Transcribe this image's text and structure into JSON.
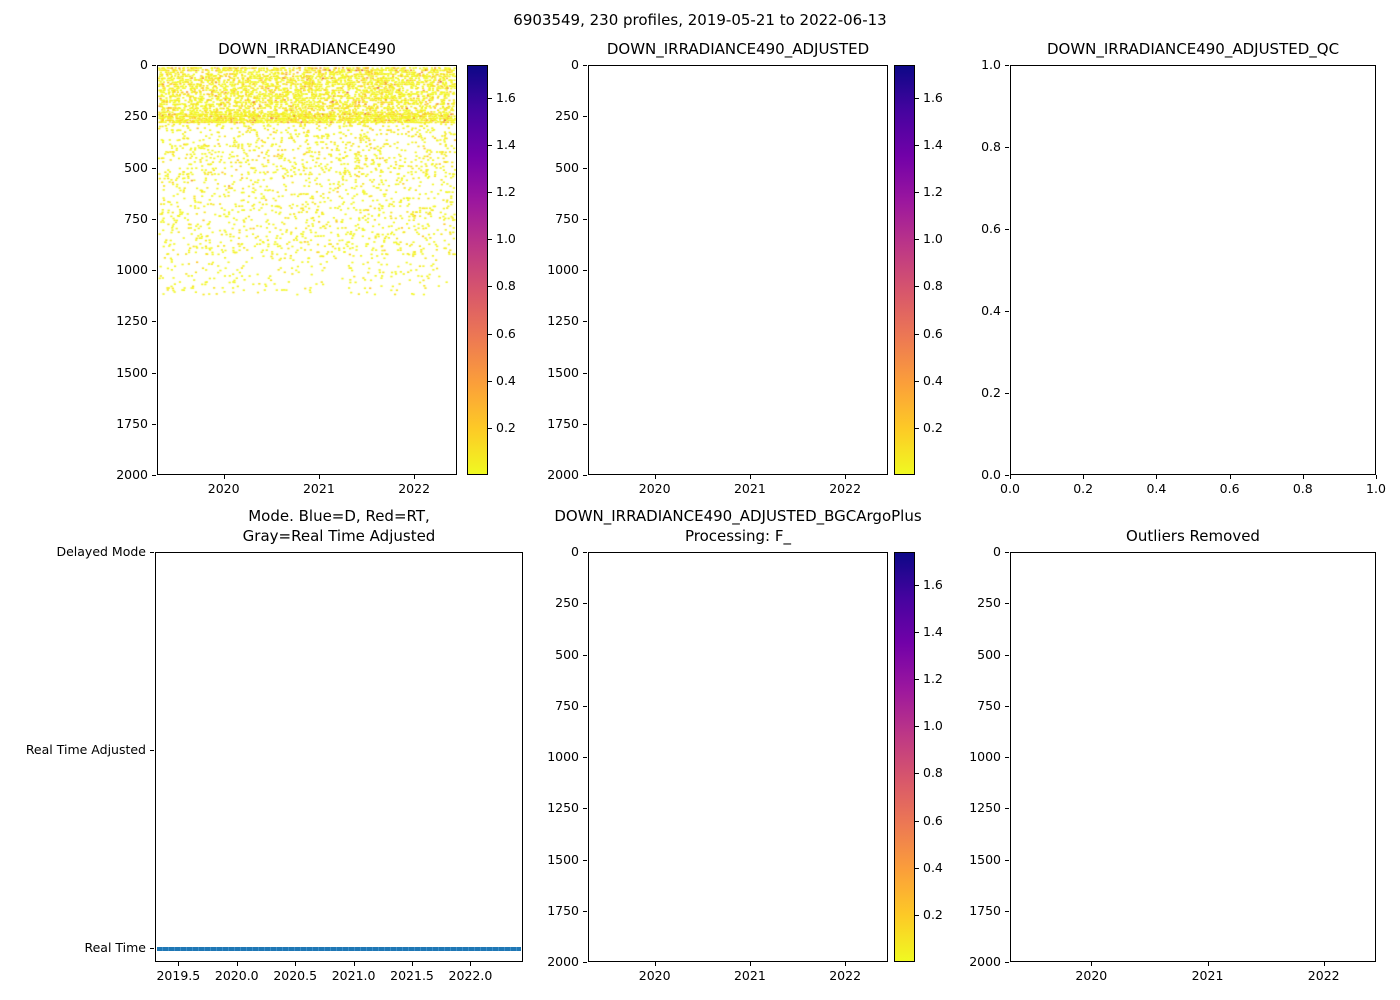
{
  "figure": {
    "suptitle": "6903549, 230 profiles, 2019-05-21 to 2022-06-13"
  },
  "palette": {
    "plasma_r_stops_top_to_bottom": [
      "#0d0887",
      "#46039f",
      "#7201a8",
      "#9c179e",
      "#bd3786",
      "#d8576b",
      "#ed7953",
      "#fb9f3a",
      "#fdca26",
      "#f0f921"
    ],
    "mode_line_blue": "#1f77b4",
    "scatter_yellow": "#f2f622",
    "scatter_yellow2": "#f6e51e",
    "scatter_gold": "#fdc827",
    "scatter_orange": "#f59e35",
    "scatter_redorange": "#e2633f"
  },
  "colorbar": {
    "vmin": 0.0,
    "vmax": 1.74,
    "tick_values": [
      0.2,
      0.4,
      0.6,
      0.8,
      1.0,
      1.2,
      1.4,
      1.6
    ],
    "tick_labels": [
      "0.2",
      "0.4",
      "0.6",
      "0.8",
      "1.0",
      "1.2",
      "1.4",
      "1.6"
    ]
  },
  "chart_data": [
    {
      "id": "ax1",
      "type": "scatter",
      "title": "DOWN_IRRADIANCE490",
      "xlim": [
        2019.3,
        2022.45
      ],
      "ylim": [
        0,
        2000
      ],
      "y_axis_inverted_depth": true,
      "xticks": {
        "values": [
          2020,
          2021,
          2022
        ],
        "labels": [
          "2020",
          "2021",
          "2022"
        ]
      },
      "yticks": {
        "values": [
          0,
          250,
          500,
          750,
          1000,
          1250,
          1500,
          1750,
          2000
        ],
        "labels": [
          "0",
          "250",
          "500",
          "750",
          "1000",
          "1250",
          "1500",
          "1750",
          "2000"
        ]
      },
      "has_colorbar": true,
      "scatter": {
        "n_profiles": 230,
        "x_data_range": [
          2019.42,
          2022.45
        ],
        "depth_data_range": [
          0,
          1115
        ],
        "value_range_colorbar": [
          0.0,
          1.74
        ],
        "dominant_value_level": "low (~0.05-0.2, yellow on plasma_r)",
        "bands": [
          {
            "depth": [
              0,
              15
            ],
            "density": 0.55,
            "p_gold": 0.1,
            "p_orange": 0.1,
            "p_redorange": 0.04
          },
          {
            "depth": [
              15,
              230
            ],
            "density": 0.48,
            "p_gold": 0.1,
            "p_orange": 0.02,
            "p_redorange": 0.003
          },
          {
            "depth": [
              230,
              272
            ],
            "density": 0.8,
            "p_gold": 0.1,
            "p_orange": 0.05,
            "p_redorange": 0.01
          },
          {
            "depth": [
              272,
              540
            ],
            "density": 0.13,
            "p_gold": 0.05,
            "p_orange": 0.004,
            "p_redorange": 0
          },
          {
            "depth": [
              540,
              920
            ],
            "density": 0.1,
            "p_gold": 0.03,
            "p_orange": 0.002,
            "p_redorange": 0
          },
          {
            "depth": [
              920,
              1115
            ],
            "density": 0.055,
            "p_gold": 0.02,
            "p_orange": 0,
            "p_redorange": 0
          }
        ]
      }
    },
    {
      "id": "ax2",
      "type": "scatter",
      "title": "DOWN_IRRADIANCE490_ADJUSTED",
      "empty": true,
      "xlim": [
        2019.3,
        2022.45
      ],
      "ylim": [
        0,
        2000
      ],
      "xticks": {
        "values": [
          2020,
          2021,
          2022
        ],
        "labels": [
          "2020",
          "2021",
          "2022"
        ]
      },
      "yticks": {
        "values": [
          0,
          250,
          500,
          750,
          1000,
          1250,
          1500,
          1750,
          2000
        ],
        "labels": [
          "0",
          "250",
          "500",
          "750",
          "1000",
          "1250",
          "1500",
          "1750",
          "2000"
        ]
      },
      "has_colorbar": true
    },
    {
      "id": "ax3",
      "type": "scatter",
      "title": "DOWN_IRRADIANCE490_ADJUSTED_QC",
      "empty": true,
      "xlim": [
        0.0,
        1.0
      ],
      "ylim": [
        1.0,
        0.0
      ],
      "xticks": {
        "values": [
          0.0,
          0.2,
          0.4,
          0.6,
          0.8,
          1.0
        ],
        "labels": [
          "0.0",
          "0.2",
          "0.4",
          "0.6",
          "0.8",
          "1.0"
        ]
      },
      "yticks": {
        "values": [
          1.0,
          0.8,
          0.6,
          0.4,
          0.2,
          0.0
        ],
        "labels": [
          "1.0",
          "0.8",
          "0.6",
          "0.4",
          "0.2",
          "0.0"
        ]
      },
      "has_colorbar": false
    },
    {
      "id": "ax4",
      "type": "line",
      "title": "Mode. Blue=D, Red=RT,\nGray=Real Time Adjusted",
      "xlim": [
        2019.3,
        2022.45
      ],
      "ylim": [
        2.0,
        -0.07
      ],
      "xticks": {
        "values": [
          2019.5,
          2020.0,
          2020.5,
          2021.0,
          2021.5,
          2022.0
        ],
        "labels": [
          "2019.5",
          "2020.0",
          "2020.5",
          "2021.0",
          "2021.5",
          "2022.0"
        ]
      },
      "yticks": {
        "values": [
          2,
          1,
          0
        ],
        "labels": [
          "Delayed Mode",
          "Real Time Adjusted",
          "Real Time"
        ]
      },
      "has_colorbar": false,
      "line": {
        "series_name": "Mode",
        "y_category": "Real Time",
        "y_value": 0,
        "x_span": [
          2019.42,
          2022.45
        ],
        "color": "#1f77b4",
        "note": "all 230 profiles are Real Time mode"
      }
    },
    {
      "id": "ax5",
      "type": "scatter",
      "title": "DOWN_IRRADIANCE490_ADJUSTED_BGCArgoPlus\nProcessing: F_",
      "empty": true,
      "xlim": [
        2019.3,
        2022.45
      ],
      "ylim": [
        0,
        2000
      ],
      "xticks": {
        "values": [
          2020,
          2021,
          2022
        ],
        "labels": [
          "2020",
          "2021",
          "2022"
        ]
      },
      "yticks": {
        "values": [
          0,
          250,
          500,
          750,
          1000,
          1250,
          1500,
          1750,
          2000
        ],
        "labels": [
          "0",
          "250",
          "500",
          "750",
          "1000",
          "1250",
          "1500",
          "1750",
          "2000"
        ]
      },
      "has_colorbar": true
    },
    {
      "id": "ax6",
      "type": "scatter",
      "title": "Outliers Removed",
      "empty": true,
      "xlim": [
        2019.3,
        2022.45
      ],
      "ylim": [
        0,
        2000
      ],
      "xticks": {
        "values": [
          2020,
          2021,
          2022
        ],
        "labels": [
          "2020",
          "2021",
          "2022"
        ]
      },
      "yticks": {
        "values": [
          0,
          250,
          500,
          750,
          1000,
          1250,
          1500,
          1750,
          2000
        ],
        "labels": [
          "0",
          "250",
          "500",
          "750",
          "1000",
          "1250",
          "1500",
          "1750",
          "2000"
        ]
      },
      "has_colorbar": false
    }
  ]
}
